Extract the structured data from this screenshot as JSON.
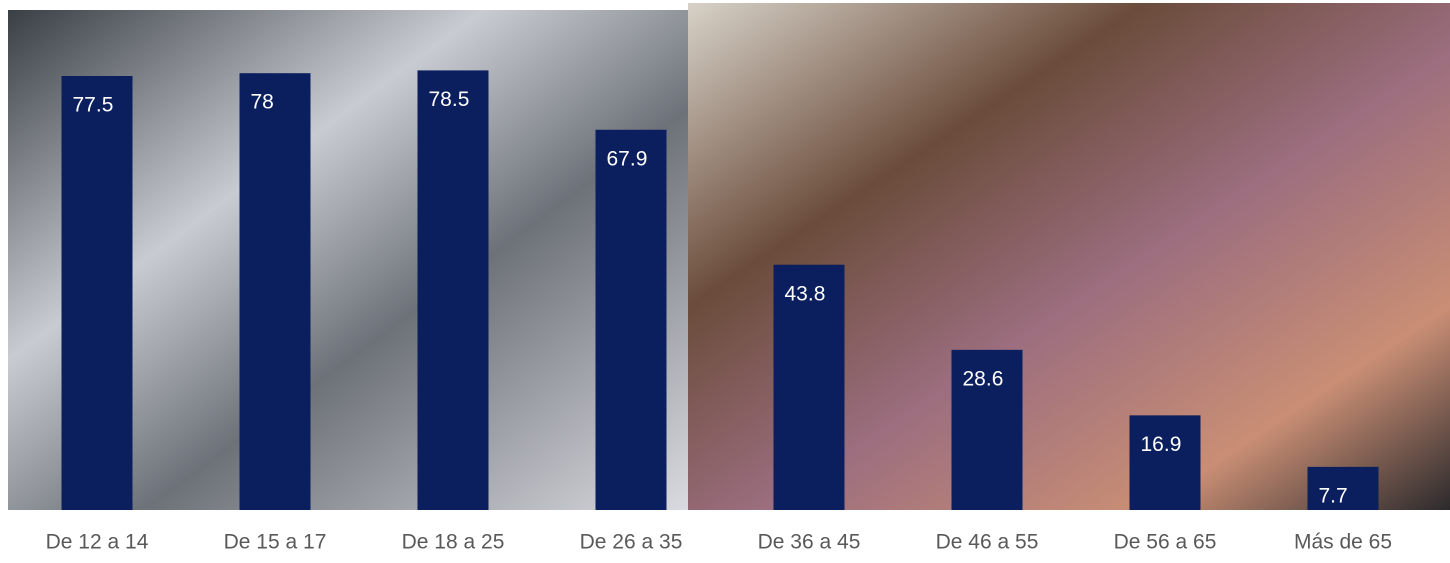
{
  "chart_data": {
    "type": "bar",
    "categories": [
      "De 12 a 14",
      "De 15 a 17",
      "De 18 a 25",
      "De 26 a 35",
      "De 36 a 45",
      "De 46 a 55",
      "De 56 a 65",
      "Más de 65"
    ],
    "values": [
      77.5,
      78,
      78.5,
      67.9,
      43.8,
      28.6,
      16.9,
      7.7
    ],
    "color": "#0b1f5e",
    "ylim": [
      0,
      90
    ]
  }
}
